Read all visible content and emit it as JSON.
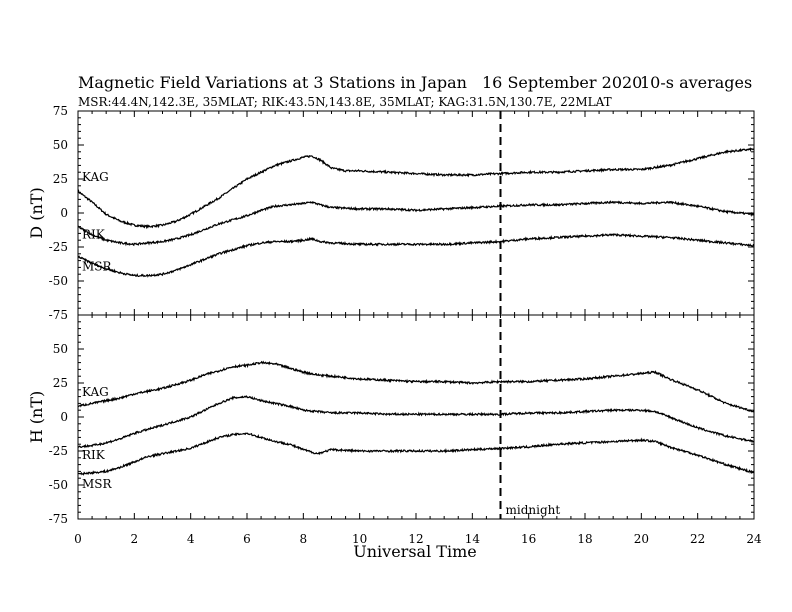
{
  "chart_data": {
    "type": "line",
    "title": "Magnetic Field Variations at 3 Stations in Japan",
    "date": "16 September 2020",
    "averaging": "10-s averages",
    "subtitle": "MSR:44.4N,142.3E, 35MLAT;  RIK:43.5N,143.8E, 35MLAT;  KAG:31.5N,130.7E, 22MLAT",
    "xlabel": "Universal Time",
    "xlim": [
      0,
      24
    ],
    "xticks": [
      0,
      2,
      4,
      6,
      8,
      10,
      12,
      14,
      16,
      18,
      20,
      22,
      24
    ],
    "annotation": {
      "label": "midnight",
      "x": 15
    },
    "panels": [
      {
        "ylabel": "D (nT)",
        "ylim": [
          -75,
          75
        ],
        "yticks": [
          75,
          50,
          25,
          0,
          -25,
          -50,
          -75
        ],
        "series": [
          {
            "name": "KAG",
            "x": [
              0,
              0.5,
              1,
              1.5,
              2,
              2.5,
              3,
              3.5,
              4,
              4.5,
              5,
              5.5,
              6,
              6.5,
              7,
              7.5,
              8,
              8.3,
              8.6,
              9,
              9.5,
              10,
              11,
              12,
              13,
              14,
              15,
              16,
              17,
              18,
              19,
              20,
              21,
              22,
              23,
              24
            ],
            "y": [
              16,
              8,
              -1,
              -6,
              -9,
              -10,
              -9,
              -6,
              -1,
              5,
              11,
              18,
              25,
              30,
              35,
              38,
              41,
              42,
              39,
              33,
              31,
              31,
              30,
              29,
              28,
              28,
              29,
              30,
              30,
              31,
              32,
              32,
              35,
              40,
              45,
              47
            ]
          },
          {
            "name": "RIK",
            "x": [
              0,
              0.5,
              1,
              1.5,
              2,
              2.5,
              3,
              3.5,
              4,
              4.5,
              5,
              5.5,
              6,
              6.5,
              7,
              7.5,
              8,
              8.3,
              8.6,
              9,
              10,
              11,
              12,
              13,
              14,
              15,
              16,
              17,
              18,
              19,
              20,
              21,
              22,
              23,
              24
            ],
            "y": [
              -10,
              -16,
              -20,
              -22,
              -23,
              -22,
              -21,
              -19,
              -16,
              -12,
              -8,
              -5,
              -2,
              2,
              5,
              6,
              7,
              8,
              6,
              4,
              3,
              3,
              2,
              3,
              4,
              5,
              6,
              6,
              7,
              8,
              7,
              8,
              5,
              1,
              -1
            ]
          },
          {
            "name": "MSR",
            "x": [
              0,
              0.5,
              1,
              1.5,
              2,
              2.5,
              3,
              3.5,
              4,
              4.5,
              5,
              5.5,
              6,
              6.5,
              7,
              7.5,
              8,
              8.3,
              8.6,
              9,
              10,
              11,
              12,
              13,
              14,
              15,
              16,
              17,
              18,
              19,
              20,
              21,
              22,
              23,
              24
            ],
            "y": [
              -32,
              -37,
              -41,
              -44,
              -46,
              -46,
              -45,
              -42,
              -38,
              -34,
              -30,
              -27,
              -24,
              -22,
              -21,
              -21,
              -20,
              -19,
              -21,
              -22,
              -23,
              -23,
              -23,
              -23,
              -22,
              -21,
              -19,
              -18,
              -17,
              -16,
              -17,
              -18,
              -20,
              -22,
              -24
            ]
          }
        ]
      },
      {
        "ylabel": "H (nT)",
        "ylim": [
          -75,
          75
        ],
        "yticks": [
          75,
          50,
          25,
          0,
          -25,
          -50,
          -75
        ],
        "series": [
          {
            "name": "KAG",
            "x": [
              0,
              0.5,
              1,
              1.5,
              2,
              2.5,
              3,
              3.5,
              4,
              4.5,
              5,
              5.5,
              6,
              6.5,
              7,
              7.5,
              8,
              8.5,
              9,
              10,
              11,
              12,
              13,
              14,
              15,
              16,
              17,
              18,
              19,
              20,
              20.5,
              21,
              22,
              23,
              24
            ],
            "y": [
              8,
              10,
              12,
              14,
              17,
              19,
              21,
              24,
              27,
              31,
              34,
              37,
              38,
              40,
              39,
              36,
              33,
              31,
              30,
              28,
              27,
              26,
              26,
              25,
              26,
              26,
              27,
              28,
              30,
              32,
              33,
              28,
              20,
              10,
              4
            ]
          },
          {
            "name": "RIK",
            "x": [
              0,
              0.5,
              1,
              1.5,
              2,
              2.5,
              3,
              3.5,
              4,
              4.5,
              5,
              5.5,
              6,
              6.5,
              7,
              7.5,
              8,
              8.5,
              9,
              10,
              11,
              12,
              13,
              14,
              15,
              16,
              17,
              18,
              19,
              20,
              20.5,
              21,
              22,
              23,
              24
            ],
            "y": [
              -22,
              -21,
              -19,
              -16,
              -12,
              -9,
              -6,
              -3,
              0,
              5,
              10,
              14,
              15,
              12,
              10,
              8,
              5,
              4,
              3,
              3,
              2,
              2,
              2,
              2,
              2,
              3,
              3,
              4,
              5,
              5,
              4,
              0,
              -8,
              -14,
              -18
            ]
          },
          {
            "name": "MSR",
            "x": [
              0,
              0.5,
              1,
              1.5,
              2,
              2.5,
              3,
              3.5,
              4,
              4.5,
              5,
              5.5,
              6,
              6.5,
              7,
              7.5,
              8,
              8.5,
              9,
              10,
              11,
              12,
              13,
              14,
              15,
              16,
              17,
              18,
              19,
              20,
              20.5,
              21,
              22,
              23,
              24
            ],
            "y": [
              -42,
              -41,
              -40,
              -37,
              -33,
              -29,
              -27,
              -25,
              -23,
              -19,
              -15,
              -13,
              -12,
              -15,
              -18,
              -20,
              -24,
              -27,
              -24,
              -25,
              -25,
              -25,
              -25,
              -24,
              -23,
              -22,
              -20,
              -19,
              -18,
              -17,
              -18,
              -22,
              -28,
              -35,
              -41
            ]
          }
        ]
      }
    ]
  }
}
